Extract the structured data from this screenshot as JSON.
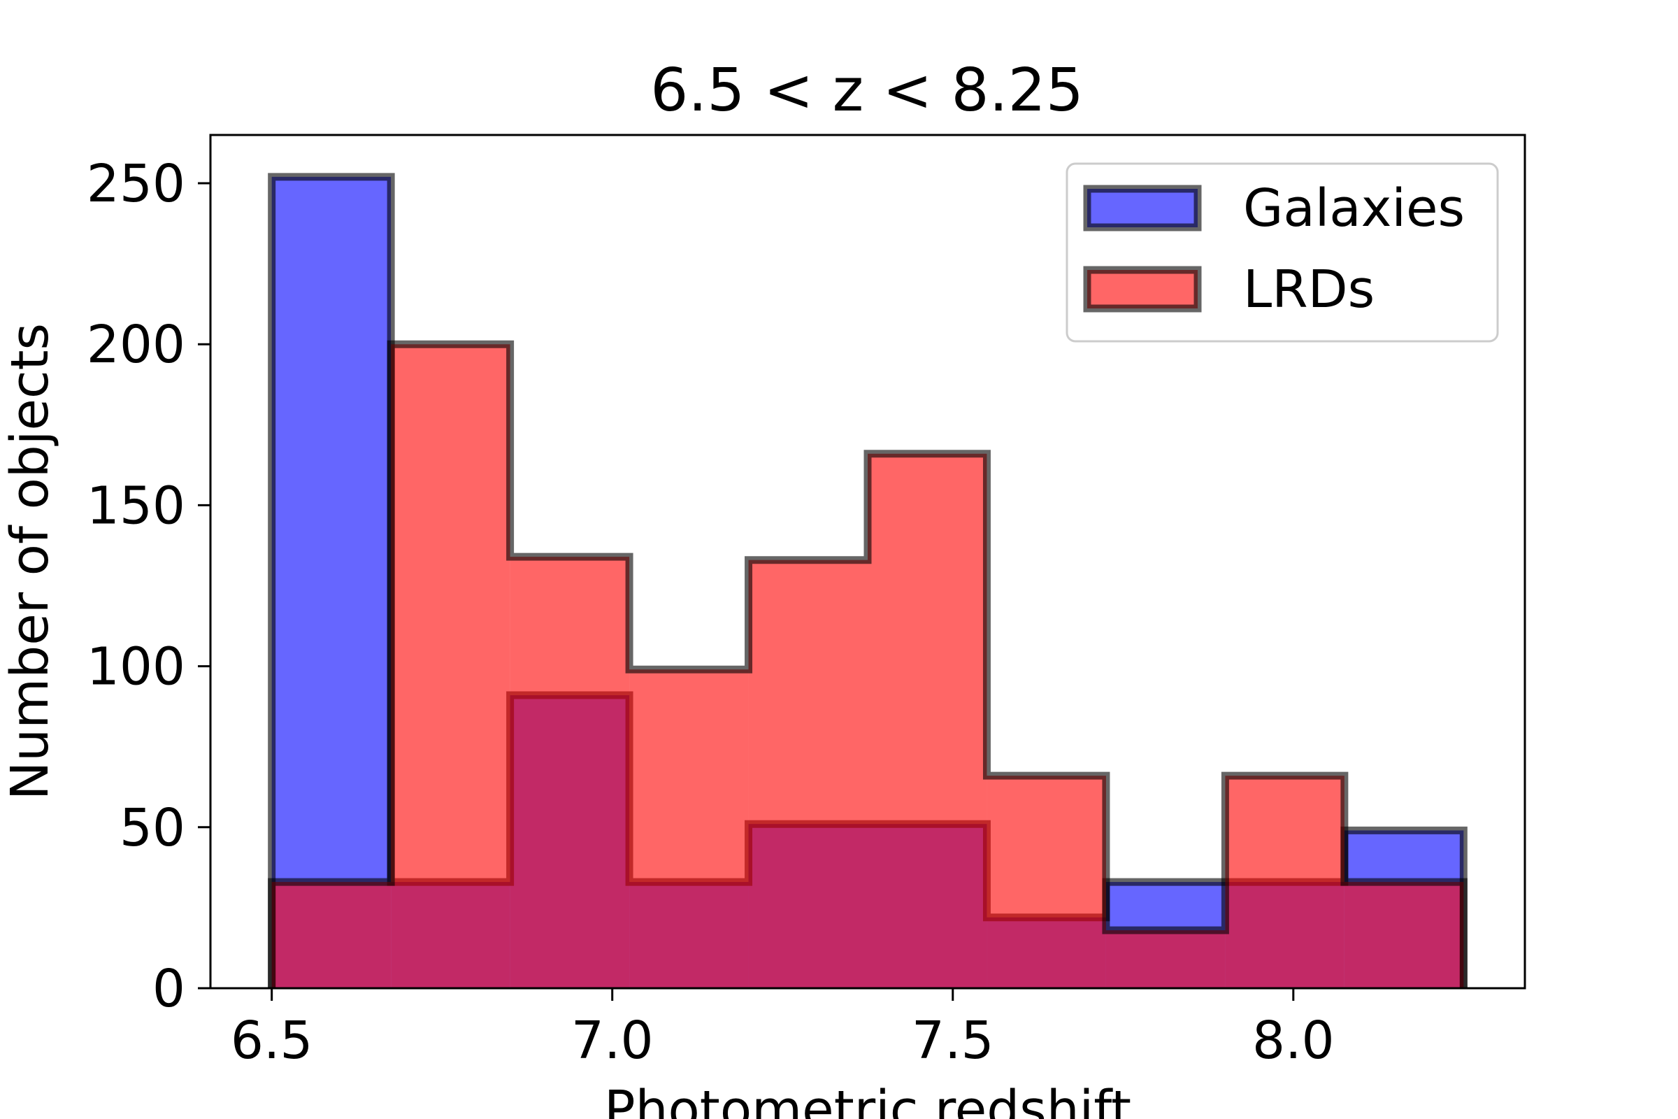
{
  "chart_data": {
    "type": "histogram",
    "title": "6.5 < z < 8.25",
    "xlabel": "Photometric redshift",
    "ylabel": "Number of objects",
    "xlim": [
      6.41,
      8.34
    ],
    "ylim": [
      0,
      265
    ],
    "bin_edges": [
      6.5,
      6.675,
      6.85,
      7.025,
      7.2,
      7.375,
      7.55,
      7.725,
      7.9,
      8.075,
      8.25
    ],
    "x_ticks": [
      6.5,
      7.0,
      7.5,
      8.0
    ],
    "x_tick_labels": [
      "6.5",
      "7.0",
      "7.5",
      "8.0"
    ],
    "y_ticks": [
      0,
      50,
      100,
      150,
      200,
      250
    ],
    "y_tick_labels": [
      "0",
      "50",
      "100",
      "150",
      "200",
      "250"
    ],
    "series": [
      {
        "name": "Galaxies",
        "color": "#0000ff",
        "values": [
          252,
          33,
          91,
          33,
          51,
          51,
          22,
          33,
          33,
          49
        ]
      },
      {
        "name": "LRDs",
        "color": "#ff0000",
        "values": [
          33,
          200,
          134,
          99,
          133,
          166,
          66,
          18,
          66,
          33
        ]
      }
    ],
    "legend_position": "top-right",
    "legend": [
      "Galaxies",
      "LRDs"
    ]
  }
}
